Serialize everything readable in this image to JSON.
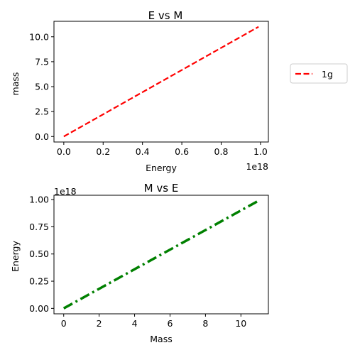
{
  "chart_data": [
    {
      "type": "line",
      "title": "E vs M",
      "xlabel": "Energy",
      "ylabel": "mass",
      "x_offset_label": "1e18",
      "y_offset_label": "",
      "xlim": [
        -0.05,
        1.04
      ],
      "ylim": [
        -0.55,
        11.55
      ],
      "x_ticks": [
        0.0,
        0.2,
        0.4,
        0.6,
        0.8,
        1.0
      ],
      "x_tick_labels": [
        "0.0",
        "0.2",
        "0.4",
        "0.6",
        "0.8",
        "1.0"
      ],
      "y_ticks": [
        0.0,
        2.5,
        5.0,
        7.5,
        10.0
      ],
      "y_tick_labels": [
        "0.0",
        "2.5",
        "5.0",
        "7.5",
        "10.0"
      ],
      "grid": false,
      "legend_placement": "outside-right",
      "series": [
        {
          "name": "1g",
          "x": [
            0.0,
            0.99
          ],
          "y": [
            0.0,
            11.0
          ],
          "color": "#ff0000",
          "linestyle": "dashed"
        }
      ]
    },
    {
      "type": "line",
      "title": "M vs E",
      "xlabel": "Mass",
      "ylabel": "Energy",
      "x_offset_label": "",
      "y_offset_label": "1e18",
      "xlim": [
        -0.55,
        11.55
      ],
      "ylim": [
        -0.05,
        1.04
      ],
      "x_ticks": [
        0,
        2,
        4,
        6,
        8,
        10
      ],
      "x_tick_labels": [
        "0",
        "2",
        "4",
        "6",
        "8",
        "10"
      ],
      "y_ticks": [
        0.0,
        0.25,
        0.5,
        0.75,
        1.0
      ],
      "y_tick_labels": [
        "0.00",
        "0.25",
        "0.50",
        "0.75",
        "1.00"
      ],
      "grid": false,
      "series": [
        {
          "x": [
            0.0,
            11.0
          ],
          "y": [
            0.0,
            0.99
          ],
          "color": "#008000",
          "linestyle": "dashdot"
        }
      ]
    }
  ]
}
